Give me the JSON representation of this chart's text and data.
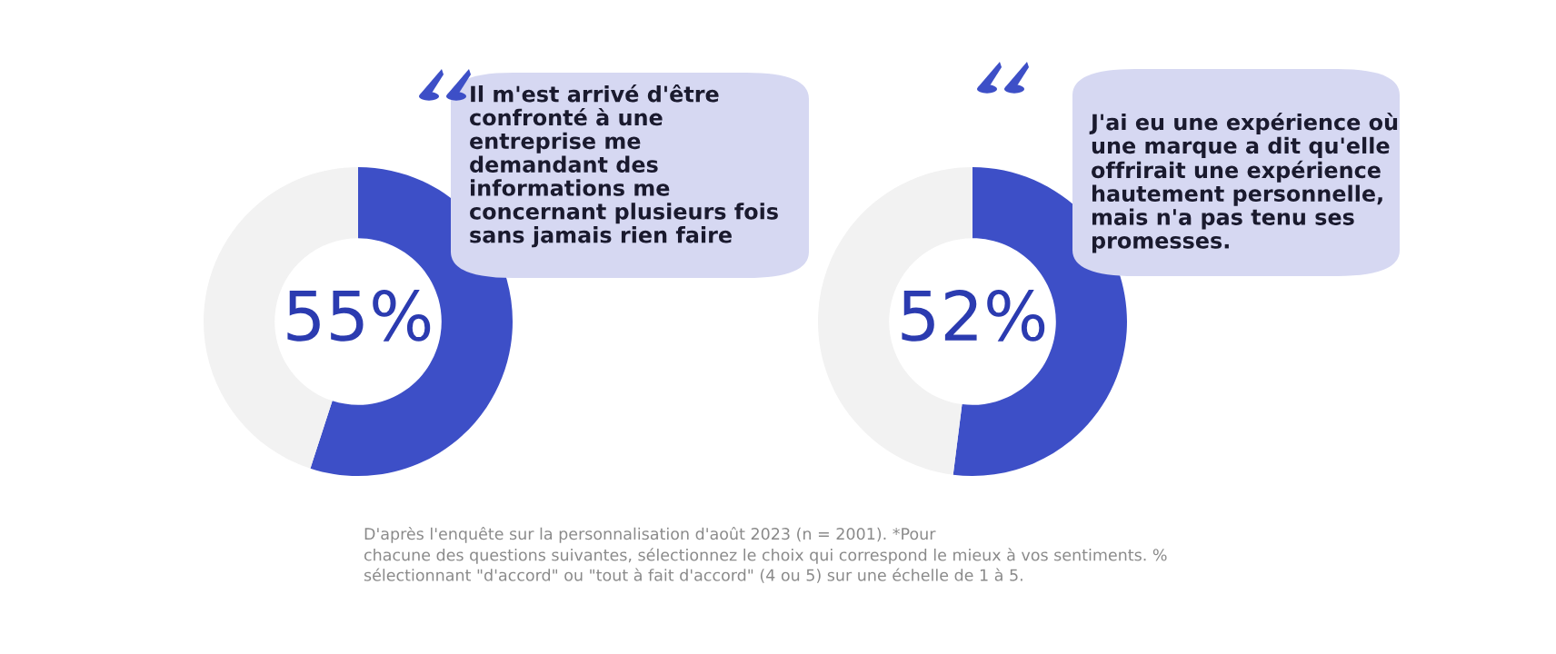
{
  "chart_data": [
    {
      "type": "donut",
      "categories": [
        null,
        null
      ],
      "values": [
        55,
        45
      ],
      "colors": [
        "#3d4fc7",
        "#f2f2f2"
      ],
      "value_labels": [
        "55%",
        null
      ],
      "legend": false,
      "annotations": [
        "Il m'est arrivé d'être\nconfronté à une\nentreprise me\ndemandant des\ninformations me\nconcernant plusieurs fois\nsans jamais rien faire",
        "D'après l'enquête sur la personnalisation d'août 2023 (n = 2001). *Pour\nchacune des questions suivantes, sélectionnez le choix qui correspond le mieux à vos sentiments. %\nsélectionnant \"d'accord\" ou \"tout à fait d'accord\" (4 ou 5) sur une échelle de 1 à 5."
      ]
    },
    {
      "type": "donut",
      "categories": [
        null,
        null
      ],
      "values": [
        52,
        48
      ],
      "colors": [
        "#3d4fc7",
        "#f2f2f2"
      ],
      "value_labels": [
        "52%",
        null
      ],
      "legend": false,
      "annotations": [
        "J'ai eu une expérience où\nune marque a dit qu'elle\noffrirait une expérience\nhautement personnelle,\nmais n'a pas tenu ses\npromesses."
      ]
    }
  ]
}
